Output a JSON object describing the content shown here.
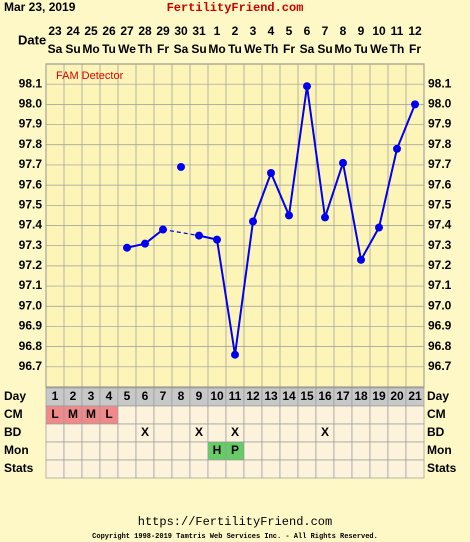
{
  "header": {
    "date": "Mar 23, 2019",
    "site": "FertilityFriend.com"
  },
  "chart_data": {
    "type": "line",
    "date_label": "Date",
    "dates": [
      23,
      24,
      25,
      26,
      27,
      28,
      29,
      30,
      31,
      1,
      2,
      3,
      4,
      5,
      6,
      7,
      8,
      9,
      10,
      11,
      12
    ],
    "weekdays": [
      "Sa",
      "Su",
      "Mo",
      "Tu",
      "We",
      "Th",
      "Fr",
      "Sa",
      "Su",
      "Mo",
      "Tu",
      "We",
      "Th",
      "Fr",
      "Sa",
      "Su",
      "Mo",
      "Tu",
      "We",
      "Th",
      "Fr"
    ],
    "categories": [
      1,
      2,
      3,
      4,
      5,
      6,
      7,
      8,
      9,
      10,
      11,
      12,
      13,
      14,
      15,
      16,
      17,
      18,
      19,
      20,
      21
    ],
    "annotation": "FAM Detector",
    "ylim": [
      96.6,
      98.2
    ],
    "yticks": [
      96.7,
      96.8,
      96.9,
      {
        "value": 97,
        "label": "97.0"
      },
      97.1,
      97.2,
      97.3,
      97.4,
      97.5,
      97.6,
      97.7,
      97.8,
      97.9,
      {
        "value": 98,
        "label": "98.0"
      },
      98.1
    ],
    "grid": true,
    "series": [
      {
        "color": "#0000ee",
        "values": [
          null,
          null,
          null,
          null,
          97.29,
          97.31,
          97.38,
          null,
          97.35,
          97.33,
          96.76,
          97.42,
          97.66,
          97.45,
          98.09,
          97.44,
          97.71,
          97.23,
          97.39,
          97.78,
          98.0
        ]
      },
      {
        "color": "#0000ee",
        "values": [
          null,
          null,
          null,
          null,
          null,
          null,
          null,
          97.69,
          null,
          null,
          null,
          null,
          null,
          null,
          null,
          null,
          null,
          null,
          null,
          null,
          null
        ]
      }
    ],
    "rows": [
      {
        "label": "Day"
      },
      {
        "label": "CM",
        "color": "#f08a8a",
        "cells": [
          "L",
          "M",
          "M",
          "L",
          null,
          null,
          null,
          null,
          null,
          null,
          null,
          null,
          null,
          null,
          null,
          null,
          null,
          null,
          null,
          null,
          null
        ]
      },
      {
        "label": "BD",
        "cells": [
          null,
          null,
          null,
          null,
          null,
          "X",
          null,
          null,
          "X",
          null,
          "X",
          null,
          null,
          null,
          null,
          "X",
          null,
          null,
          null,
          null,
          null
        ]
      },
      {
        "label": "Mon",
        "color": "#66cc66",
        "cells": [
          null,
          null,
          null,
          null,
          null,
          null,
          null,
          null,
          null,
          "H",
          "P",
          null,
          null,
          null,
          null,
          null,
          null,
          null,
          null,
          null,
          null
        ]
      },
      {
        "label": "Stats",
        "cells": [
          null,
          null,
          null,
          null,
          null,
          null,
          null,
          null,
          null,
          null,
          null,
          null,
          null,
          null,
          null,
          null,
          null,
          null,
          null,
          null,
          null
        ]
      }
    ]
  },
  "footer": {
    "url": "https://FertilityFriend.com",
    "copyright": "Copyright 1998-2019 Tamtris Web Services Inc. - All Rights Reserved."
  }
}
